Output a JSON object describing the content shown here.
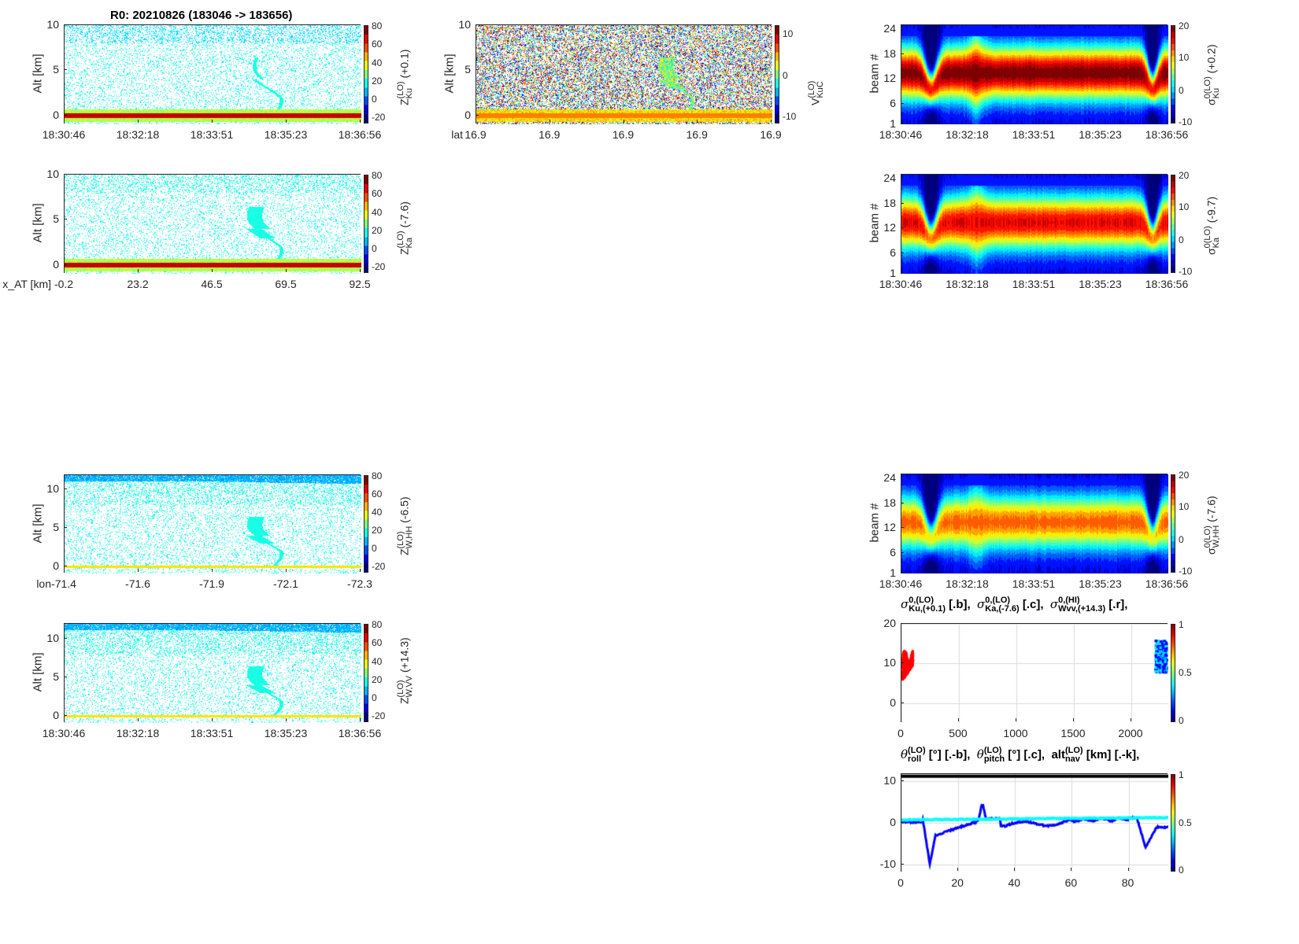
{
  "figure_title": "R0:  20210826 (183046 -> 183656)",
  "colors": {
    "axis": "#262626",
    "roll": "#0000ff",
    "pitch": "#00ffff",
    "alt": "#000000",
    "ku_sigma": "#ff0000"
  },
  "chart_data": [
    {
      "id": "p1",
      "type": "heatmap",
      "ylabel": "Alt [km]",
      "ylim": [
        -1,
        10
      ],
      "yticks": [
        10,
        5,
        0
      ],
      "xticks": [
        "18:30:46",
        "18:32:18",
        "18:33:51",
        "18:35:23",
        "18:36:56"
      ],
      "xlabel": "",
      "cbar": {
        "lim": [
          -27,
          82
        ],
        "ticks": [
          80,
          60,
          40,
          20,
          0,
          -20
        ],
        "label": {
          "base": "Z",
          "sup": "(LO)",
          "sub": "Ku",
          "suffix": " (+0.1)"
        }
      }
    },
    {
      "id": "p2",
      "type": "heatmap",
      "ylabel": "Alt [km]",
      "ylim": [
        -1,
        10
      ],
      "yticks": [
        10,
        5,
        0
      ],
      "xticks": [
        "16.9",
        "16.9",
        "16.9",
        "16.9",
        "16.9"
      ],
      "xlabel": "lat",
      "cbar": {
        "lim": [
          -11.7,
          12.3
        ],
        "ticks": [
          10,
          0,
          -10
        ],
        "label": {
          "base": "V",
          "sup": "(LO)",
          "sub": "KuC",
          "suffix": ""
        }
      }
    },
    {
      "id": "p3",
      "type": "heatmap",
      "ylabel": "beam #",
      "ylim": [
        1,
        25
      ],
      "yticks": [
        24,
        18,
        12,
        6,
        1
      ],
      "xticks": [
        "18:30:46",
        "18:32:18",
        "18:33:51",
        "18:35:23",
        "18:36:56"
      ],
      "xlabel": "",
      "cbar": {
        "lim": [
          -10,
          20
        ],
        "ticks": [
          20,
          10,
          0,
          -10
        ],
        "label": {
          "base": "σ",
          "sup": "0(LO)",
          "sub": "Ku",
          "suffix": " (+0.2)"
        }
      }
    },
    {
      "id": "p4",
      "type": "heatmap",
      "ylabel": "Alt [km]",
      "ylim": [
        -1,
        10
      ],
      "yticks": [
        10,
        5,
        0
      ],
      "xticks": [
        "-0.2",
        "23.2",
        "46.5",
        "69.5",
        "92.5"
      ],
      "xlabel": "x_AT [km]",
      "cbar": {
        "lim": [
          -27,
          82
        ],
        "ticks": [
          80,
          60,
          40,
          20,
          0,
          -20
        ],
        "label": {
          "base": "Z",
          "sup": "(LO)",
          "sub": "Ka",
          "suffix": " (-7.6)"
        }
      }
    },
    {
      "id": "p5",
      "type": "heatmap",
      "ylabel": "beam #",
      "ylim": [
        1,
        25
      ],
      "yticks": [
        24,
        18,
        12,
        6,
        1
      ],
      "xticks": [
        "18:30:46",
        "18:32:18",
        "18:33:51",
        "18:35:23",
        "18:36:56"
      ],
      "xlabel": "",
      "cbar": {
        "lim": [
          -10,
          20
        ],
        "ticks": [
          20,
          10,
          0,
          -10
        ],
        "label": {
          "base": "σ",
          "sup": "0(LO)",
          "sub": "Ka",
          "suffix": " (-9.7)"
        }
      }
    },
    {
      "id": "p6",
      "type": "heatmap",
      "ylabel": "Alt [km]",
      "ylim": [
        -0.9,
        11.8
      ],
      "yticks": [
        10,
        5,
        0
      ],
      "xticks": [
        "-71.4",
        "-71.6",
        "-71.9",
        "-72.1",
        "-72.3"
      ],
      "xlabel": "lon",
      "cbar": {
        "lim": [
          -27,
          82
        ],
        "ticks": [
          80,
          60,
          40,
          20,
          0,
          -20
        ],
        "label": {
          "base": "Z",
          "sup": "(LO)",
          "sub": "W,HH",
          "suffix": " (-6.5)"
        }
      }
    },
    {
      "id": "p7",
      "type": "heatmap",
      "ylabel": "beam #",
      "ylim": [
        1,
        25
      ],
      "yticks": [
        24,
        18,
        12,
        6,
        1
      ],
      "xticks": [
        "18:30:46",
        "18:32:18",
        "18:33:51",
        "18:35:23",
        "18:36:56"
      ],
      "xlabel": "",
      "cbar": {
        "lim": [
          -10,
          20
        ],
        "ticks": [
          20,
          10,
          0,
          -10
        ],
        "label": {
          "base": "σ",
          "sup": "0(LO)",
          "sub": "W,HH",
          "suffix": " (-7.6)"
        }
      }
    },
    {
      "id": "p8",
      "type": "heatmap",
      "ylabel": "Alt [km]",
      "ylim": [
        -0.9,
        11.9
      ],
      "yticks": [
        10,
        5,
        0
      ],
      "xticks": [
        "18:30:46",
        "18:32:18",
        "18:33:51",
        "18:35:23",
        "18:36:56"
      ],
      "xlabel": "",
      "cbar": {
        "lim": [
          -27,
          82
        ],
        "ticks": [
          80,
          60,
          40,
          20,
          0,
          -20
        ],
        "label": {
          "base": "Z",
          "sup": "(LO)",
          "sub": "W,VV",
          "suffix": " (+14.3)"
        }
      }
    },
    {
      "id": "p9",
      "type": "scatter",
      "ylabel": "",
      "ylim": [
        -5,
        20
      ],
      "yticks": [
        20,
        10,
        0
      ],
      "xlim": [
        0,
        2322
      ],
      "xtick_values": [
        0,
        500,
        1000,
        1500,
        2000
      ],
      "grid": true,
      "title": [
        {
          "sym": "σ",
          "sup": "0,(LO)",
          "sub": "Ku,(+0.1)",
          "after": " [.b],  "
        },
        {
          "sym": "σ",
          "sup": "0,(LO)",
          "sub": "Ka,(-7.6)",
          "after": " [.c],  "
        },
        {
          "sym": "σ",
          "sup": "0,(HI)",
          "sub": "Wvv,(+14.3)",
          "after": " [.r],"
        }
      ],
      "cbar": {
        "lim": [
          0,
          1
        ],
        "ticks": [
          1,
          0.5,
          0
        ],
        "label": null
      }
    },
    {
      "id": "p10",
      "type": "line",
      "ylabel": "",
      "ylim": [
        -11.9,
        11.7
      ],
      "yticks": [
        10,
        0,
        -10
      ],
      "xlim": [
        0,
        94
      ],
      "xtick_values": [
        0,
        20,
        40,
        60,
        80
      ],
      "grid": true,
      "title": [
        {
          "sym": "θ",
          "sup": "(LO)",
          "sub": "roll",
          "after": " [°] [.-b],  "
        },
        {
          "sym": "θ",
          "sup": "(LO)",
          "sub": "pitch",
          "after": " [°] [.c],  "
        },
        {
          "sym": "alt",
          "sup": "(LO)",
          "sub": "nav",
          "after": " [km] [.-k],"
        }
      ],
      "cbar": {
        "lim": [
          0,
          1
        ],
        "ticks": [
          1,
          0.5,
          0
        ],
        "label": null
      }
    }
  ]
}
